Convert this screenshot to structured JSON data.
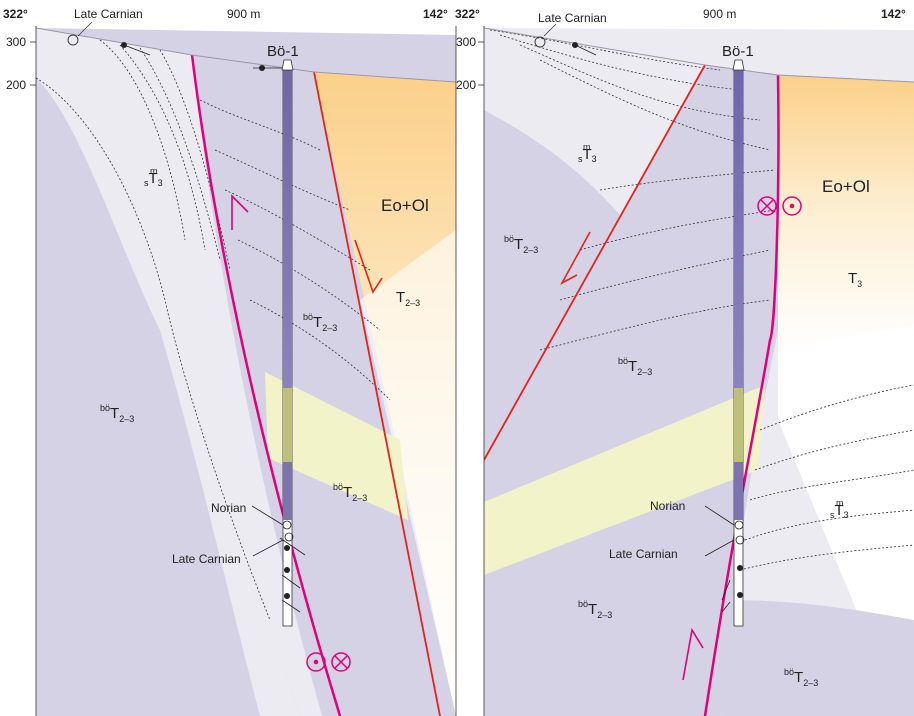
{
  "panels": [
    {
      "azimuth_left": "322°",
      "distance": "900 m",
      "azimuth_right": "142°",
      "ticks": [
        "300",
        "200"
      ],
      "well": "Bö-1",
      "labels": {
        "late_carnian_top": "Late Carnian",
        "norian": "Norian",
        "late_carnian_well": "Late Carnian",
        "eo_ol": "Eo+Ol"
      },
      "units": [
        {
          "sup": "m",
          "sub_pre": "s",
          "main": "T",
          "sub": "3"
        },
        {
          "sup": "bö",
          "sub_pre": "",
          "main": "T",
          "sub": "2–3"
        },
        {
          "sup": "bö",
          "sub_pre": "",
          "main": "T",
          "sub": "2–3"
        },
        {
          "sup": "bö",
          "sub_pre": "",
          "main": "T",
          "sub": "2–3"
        },
        {
          "sup": "",
          "sub_pre": "",
          "main": "T",
          "sub": "2–3"
        }
      ]
    },
    {
      "azimuth_left": "322°",
      "distance": "900 m",
      "azimuth_right": "142°",
      "ticks": [
        "300",
        "200"
      ],
      "well": "Bö-1",
      "labels": {
        "late_carnian_top": "Late Carnian",
        "norian": "Norian",
        "late_carnian_well": "Late Carnian",
        "eo_ol": "Eo+Ol"
      },
      "units": [
        {
          "sup": "m",
          "sub_pre": "s",
          "main": "T",
          "sub": "3"
        },
        {
          "sup": "bö",
          "sub_pre": "",
          "main": "T",
          "sub": "2–3"
        },
        {
          "sup": "bö",
          "sub_pre": "",
          "main": "T",
          "sub": "2–3"
        },
        {
          "sup": "m",
          "sub_pre": "s",
          "main": "T",
          "sub": "3"
        },
        {
          "sup": "bö",
          "sub_pre": "",
          "main": "T",
          "sub": "2–3"
        },
        {
          "sup": "bö",
          "sub_pre": "",
          "main": "T",
          "sub": "2–3"
        },
        {
          "sup": "",
          "sub_pre": "",
          "main": "T",
          "sub": "3"
        }
      ]
    }
  ],
  "colors": {
    "purple_unit": "#d6d2e6",
    "light_unit": "#ecebf2",
    "yellow_band": "#f3f3c9",
    "orange_fill": "#fbd89a",
    "red_fault": "#e5231b",
    "magenta_fault": "#e2007a",
    "well_fill": "#7d74ad"
  }
}
